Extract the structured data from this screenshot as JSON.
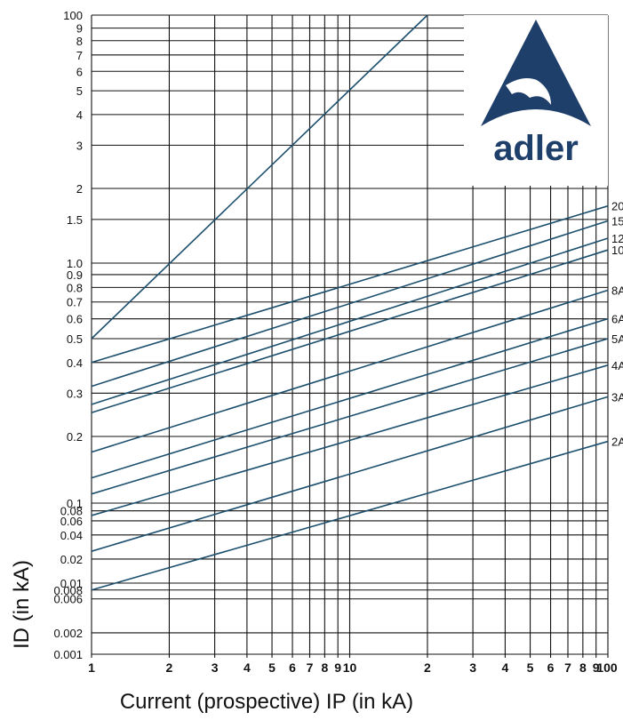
{
  "chart_data": {
    "type": "line",
    "scale": "log-log",
    "grid": true,
    "x": {
      "min": 1,
      "max": 100,
      "tick_labels": [
        "1",
        "2",
        "3",
        "4",
        "5",
        "6",
        "7",
        "8",
        "9",
        "10",
        "2",
        "3",
        "4",
        "5",
        "6",
        "7",
        "8",
        "9",
        "100"
      ]
    },
    "y": {
      "min": 0.001,
      "max": 100,
      "ticks": [
        {
          "value": 100,
          "label": "100"
        },
        {
          "value": 9,
          "label": "9"
        },
        {
          "value": 8,
          "label": "8"
        },
        {
          "value": 7,
          "label": "7"
        },
        {
          "value": 6,
          "label": "6"
        },
        {
          "value": 5,
          "label": "5"
        },
        {
          "value": 4,
          "label": "4"
        },
        {
          "value": 3,
          "label": "3"
        },
        {
          "value": 2,
          "label": "2"
        },
        {
          "value": 1.5,
          "label": "1.5"
        },
        {
          "value": 1.0,
          "label": "1.0"
        },
        {
          "value": 0.9,
          "label": "0.9"
        },
        {
          "value": 0.8,
          "label": "0.8"
        },
        {
          "value": 0.7,
          "label": "0.7"
        },
        {
          "value": 0.6,
          "label": "0.6"
        },
        {
          "value": 0.5,
          "label": "0.5"
        },
        {
          "value": 0.4,
          "label": "0.4"
        },
        {
          "value": 0.3,
          "label": "0.3"
        },
        {
          "value": 0.2,
          "label": "0.2"
        },
        {
          "value": 0.1,
          "label": "0.1"
        },
        {
          "value": 0.08,
          "label": "0.08"
        },
        {
          "value": 0.06,
          "label": "0.06"
        },
        {
          "value": 0.04,
          "label": "0.04"
        },
        {
          "value": 0.02,
          "label": "0.02"
        },
        {
          "value": 0.01,
          "label": "0.01"
        },
        {
          "value": 0.008,
          "label": "0.008"
        },
        {
          "value": 0.006,
          "label": "0.006"
        },
        {
          "value": 0.002,
          "label": "0.002"
        },
        {
          "value": 0.001,
          "label": "0.001"
        }
      ]
    },
    "xlabel": "Current (prospective) IP (in kA)",
    "ylabel": "ID (in kA)",
    "reference_line": {
      "x": [
        1,
        20
      ],
      "y": [
        0.5,
        100
      ]
    },
    "series": [
      {
        "name": "20",
        "x": [
          1,
          100
        ],
        "y": [
          0.4,
          1.7
        ]
      },
      {
        "name": "15",
        "x": [
          1,
          100
        ],
        "y": [
          0.32,
          1.48
        ]
      },
      {
        "name": "12",
        "x": [
          1,
          100
        ],
        "y": [
          0.27,
          1.26
        ]
      },
      {
        "name": "10",
        "x": [
          1,
          100
        ],
        "y": [
          0.25,
          1.13
        ]
      },
      {
        "name": "8A",
        "x": [
          1,
          100
        ],
        "y": [
          0.17,
          0.78
        ]
      },
      {
        "name": "6A",
        "x": [
          1,
          100
        ],
        "y": [
          0.13,
          0.6
        ]
      },
      {
        "name": "5A",
        "x": [
          1,
          100
        ],
        "y": [
          0.11,
          0.5
        ]
      },
      {
        "name": "4A",
        "x": [
          1,
          100
        ],
        "y": [
          0.07,
          0.39
        ]
      },
      {
        "name": "3A",
        "x": [
          1,
          100
        ],
        "y": [
          0.025,
          0.29
        ]
      },
      {
        "name": "2A",
        "x": [
          1,
          100
        ],
        "y": [
          0.008,
          0.19
        ]
      }
    ]
  },
  "logo": {
    "text": "adler"
  },
  "colors": {
    "grid": "#111111",
    "curve": "#1c4f6e",
    "logo": "#1f3f6b"
  }
}
